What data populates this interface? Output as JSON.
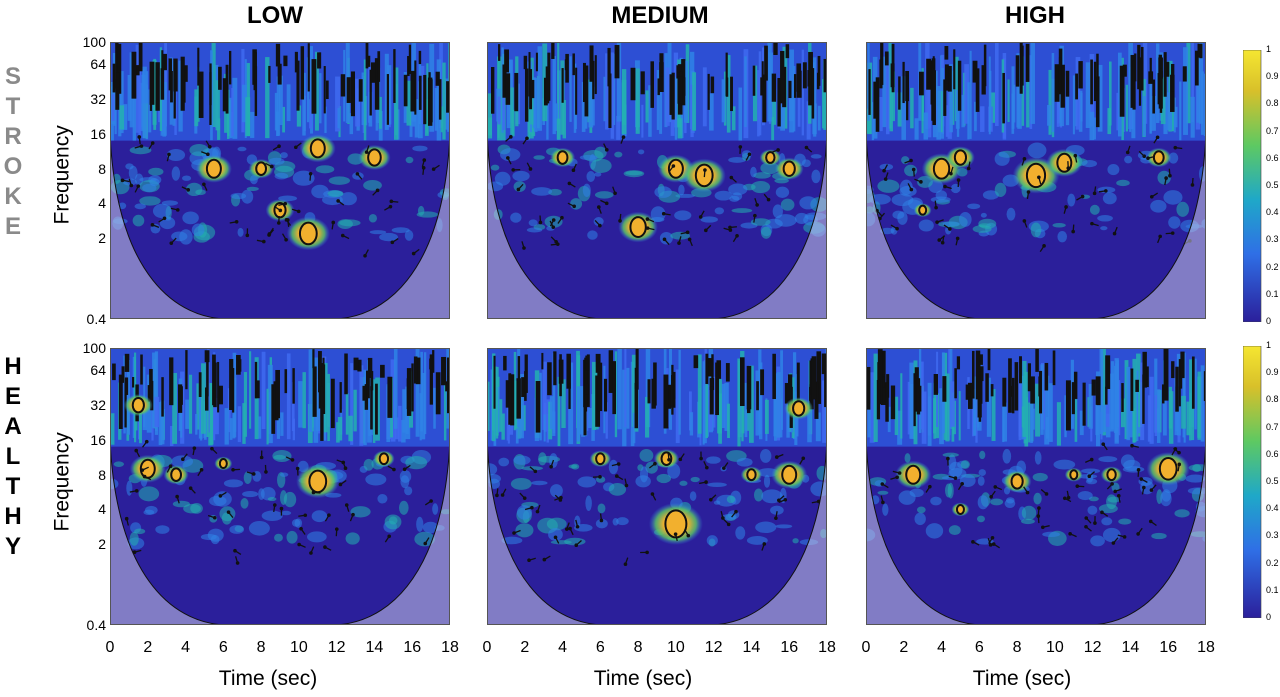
{
  "columns": [
    "LOW",
    "MEDIUM",
    "HIGH"
  ],
  "rows": [
    {
      "label": "STROKE",
      "letters": [
        "S",
        "T",
        "R",
        "O",
        "K",
        "E"
      ]
    },
    {
      "label": "HEALTHY",
      "letters": [
        "H",
        "E",
        "A",
        "L",
        "T",
        "H",
        "Y"
      ]
    }
  ],
  "colors": {
    "low": "#2b1f9b",
    "mid": "#2f82e6",
    "teal": "#23b0b0",
    "green": "#5ec962",
    "high": "#f5d431",
    "orange": "#f2b02e",
    "edge": "#111111",
    "coi_shade": "#c8c8e8"
  },
  "chart_data": {
    "type": "heatmap",
    "description_of_panels": "wavelet coherence",
    "ylabel": "Frequency",
    "xlabel": "Time (sec)",
    "y_ticks": [
      "100",
      "64",
      "32",
      "16",
      "8",
      "4",
      "2",
      "0.4"
    ],
    "x_ticks": [
      "0",
      "2",
      "4",
      "6",
      "8",
      "10",
      "12",
      "14",
      "16",
      "18"
    ],
    "xlim": [
      0,
      18
    ],
    "colorbar": {
      "min": 0,
      "max": 1,
      "ticks": [
        "1",
        "0.9",
        "0.8",
        "0.7",
        "0.6",
        "0.5",
        "0.4",
        "0.3",
        "0.2",
        "0.1",
        "0"
      ]
    },
    "panels": [
      {
        "row": "STROKE",
        "col": "LOW",
        "hotspots": [
          [
            5.5,
            8,
            1
          ],
          [
            11,
            12,
            1
          ],
          [
            10.5,
            2.2,
            1.2
          ],
          [
            9,
            3.5,
            0.8
          ],
          [
            14,
            10,
            0.9
          ],
          [
            8,
            8,
            0.7
          ]
        ]
      },
      {
        "row": "STROKE",
        "col": "MEDIUM",
        "hotspots": [
          [
            8,
            2.5,
            1.1
          ],
          [
            10,
            8,
            1
          ],
          [
            11.5,
            7,
            1.2
          ],
          [
            4,
            10,
            0.7
          ],
          [
            16,
            8,
            0.8
          ],
          [
            15,
            10,
            0.6
          ]
        ]
      },
      {
        "row": "STROKE",
        "col": "HIGH",
        "hotspots": [
          [
            4,
            8,
            1.1
          ],
          [
            9,
            7,
            1.3
          ],
          [
            10.5,
            9,
            1
          ],
          [
            5,
            10,
            0.8
          ],
          [
            15.5,
            10,
            0.7
          ],
          [
            3,
            3.5,
            0.5
          ]
        ]
      },
      {
        "row": "HEALTHY",
        "col": "LOW",
        "hotspots": [
          [
            2,
            9,
            1
          ],
          [
            3.5,
            8,
            0.7
          ],
          [
            11,
            7,
            1.2
          ],
          [
            1.5,
            32,
            0.8
          ],
          [
            14.5,
            11,
            0.6
          ],
          [
            6,
            10,
            0.5
          ]
        ]
      },
      {
        "row": "HEALTHY",
        "col": "MEDIUM",
        "hotspots": [
          [
            10,
            3,
            1.5
          ],
          [
            16,
            8,
            1
          ],
          [
            16.5,
            30,
            0.8
          ],
          [
            9.5,
            11,
            0.7
          ],
          [
            6,
            11,
            0.6
          ],
          [
            14,
            8,
            0.6
          ]
        ]
      },
      {
        "row": "HEALTHY",
        "col": "HIGH",
        "hotspots": [
          [
            2.5,
            8,
            1
          ],
          [
            8,
            7,
            0.8
          ],
          [
            16,
            9,
            1.2
          ],
          [
            13,
            8,
            0.6
          ],
          [
            5,
            4,
            0.5
          ],
          [
            11,
            8,
            0.5
          ]
        ]
      }
    ]
  }
}
